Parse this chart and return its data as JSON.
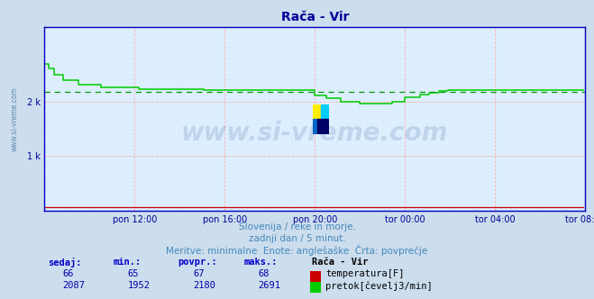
{
  "title": "Rača - Vir",
  "bg_color": "#ccdded",
  "plot_bg_color": "#ddeeff",
  "title_color": "#000099",
  "grid_color_major": "#ffaaaa",
  "grid_color_minor": "#ccddee",
  "ylabel_color": "#000099",
  "xlabel_color": "#000099",
  "watermark_text": "www.si-vreme.com",
  "watermark_color": "#336699",
  "watermark_alpha": 0.18,
  "subtitle1": "Slovenija / reke in morje.",
  "subtitle2": "zadnji dan / 5 minut.",
  "subtitle3": "Meritve: minimalne  Enote: anglešaške  Črta: povprečje",
  "subtitle_color": "#4488bb",
  "xticklabels": [
    "pon 12:00",
    "pon 16:00",
    "pon 20:00",
    "tor 00:00",
    "tor 04:00",
    "tor 08:00"
  ],
  "xtick_positions": [
    48,
    96,
    144,
    192,
    240,
    288
  ],
  "ytick_labels": [
    "1 k",
    "2 k"
  ],
  "ytick_positions": [
    1000,
    2000
  ],
  "ymin": 0,
  "ymax": 3360,
  "xmin": 0,
  "xmax": 288,
  "avg_flow": 2180,
  "flow_color": "#00cc00",
  "temp_color": "#cc0000",
  "avg_line_color": "#009900",
  "spine_color": "#0000bb",
  "legend_station": "Rača - Vir",
  "legend_temp_label": "temperatura[F]",
  "legend_flow_label": "pretok[čevelj3/min]",
  "table_headers": [
    "sedaj:",
    "min.:",
    "povpr.:",
    "maks.:"
  ],
  "table_temp": [
    66,
    65,
    67,
    68
  ],
  "table_flow": [
    2087,
    1952,
    2180,
    2691
  ]
}
